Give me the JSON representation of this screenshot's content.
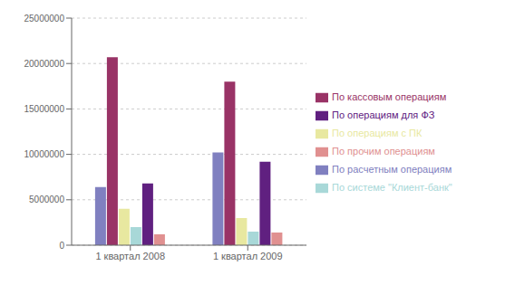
{
  "chart_data": {
    "type": "bar",
    "categories": [
      "1 квартал 2008",
      "1 квартал 2009"
    ],
    "series": [
      {
        "name": "По расчетным операциям",
        "color": "#8080c0",
        "values": [
          6400000,
          10200000
        ]
      },
      {
        "name": "По кассовым операциям",
        "color": "#993366",
        "values": [
          20700000,
          18000000
        ]
      },
      {
        "name": "По операциям с ПК",
        "color": "#e8e8a0",
        "values": [
          4000000,
          3000000
        ]
      },
      {
        "name": "По системе \"Клиент-банк\"",
        "color": "#a8d8d8",
        "values": [
          2000000,
          1500000
        ]
      },
      {
        "name": "По операциям для ФЗ",
        "color": "#602080",
        "values": [
          6800000,
          9200000
        ]
      },
      {
        "name": "По прочим операциям",
        "color": "#e09090",
        "values": [
          1200000,
          1400000
        ]
      }
    ],
    "ylim": [
      0,
      25000000
    ],
    "yticks": [
      0,
      5000000,
      10000000,
      15000000,
      20000000,
      25000000
    ],
    "grid": true,
    "legend": "right"
  }
}
